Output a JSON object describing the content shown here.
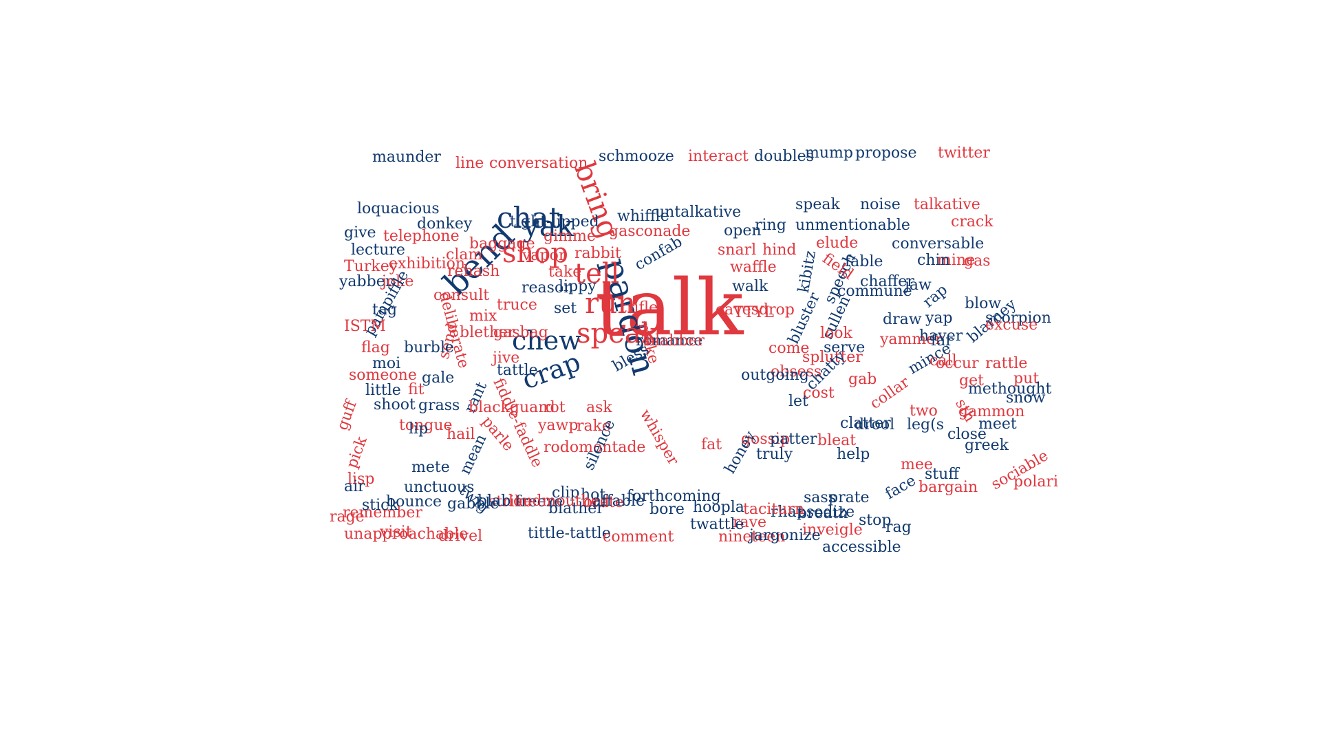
{
  "colors": {
    "navy": "#123a6f",
    "red": "#e0383f",
    "background": "#ffffff"
  },
  "words": [
    {
      "text": "talk",
      "color": "red",
      "size": "xxl"
    },
    {
      "text": "pardon",
      "color": "navy",
      "size": "l"
    },
    {
      "text": "bend",
      "color": "navy",
      "size": "l"
    },
    {
      "text": "chat",
      "color": "navy",
      "size": "l"
    },
    {
      "text": "yak",
      "color": "navy",
      "size": "l"
    },
    {
      "text": "bring",
      "color": "red",
      "size": "l"
    },
    {
      "text": "shop",
      "color": "red",
      "size": "l"
    },
    {
      "text": "tell",
      "color": "red",
      "size": "l"
    },
    {
      "text": "run",
      "color": "red",
      "size": "l"
    },
    {
      "text": "speak",
      "color": "red",
      "size": "l"
    },
    {
      "text": "chew",
      "color": "navy",
      "size": "l"
    },
    {
      "text": "crap",
      "color": "navy",
      "size": "l"
    },
    {
      "text": "maunder",
      "color": "navy",
      "size": "s"
    },
    {
      "text": "line",
      "color": "red",
      "size": "s"
    },
    {
      "text": "conversation",
      "color": "red",
      "size": "s"
    },
    {
      "text": "schmooze",
      "color": "navy",
      "size": "s"
    },
    {
      "text": "interact",
      "color": "red",
      "size": "s"
    },
    {
      "text": "doubles",
      "color": "navy",
      "size": "s"
    },
    {
      "text": "mump",
      "color": "navy",
      "size": "s"
    },
    {
      "text": "propose",
      "color": "navy",
      "size": "s"
    },
    {
      "text": "twitter",
      "color": "red",
      "size": "s"
    },
    {
      "text": "loquacious",
      "color": "navy",
      "size": "s"
    },
    {
      "text": "donkey",
      "color": "navy",
      "size": "s"
    },
    {
      "text": "tight-lipped",
      "color": "navy",
      "size": "s"
    },
    {
      "text": "whiffle",
      "color": "navy",
      "size": "s"
    },
    {
      "text": "untalkative",
      "color": "navy",
      "size": "s"
    },
    {
      "text": "speak",
      "color": "navy",
      "size": "s"
    },
    {
      "text": "noise",
      "color": "navy",
      "size": "s"
    },
    {
      "text": "talkative",
      "color": "red",
      "size": "s"
    },
    {
      "text": "give",
      "color": "navy",
      "size": "s"
    },
    {
      "text": "telephone",
      "color": "red",
      "size": "s"
    },
    {
      "text": "gimme",
      "color": "red",
      "size": "s"
    },
    {
      "text": "gasconade",
      "color": "red",
      "size": "s"
    },
    {
      "text": "open",
      "color": "navy",
      "size": "s"
    },
    {
      "text": "ring",
      "color": "navy",
      "size": "s"
    },
    {
      "text": "unmentionable",
      "color": "navy",
      "size": "s"
    },
    {
      "text": "crack",
      "color": "red",
      "size": "s"
    },
    {
      "text": "lecture",
      "color": "navy",
      "size": "s"
    },
    {
      "text": "clam",
      "color": "red",
      "size": "s"
    },
    {
      "text": "baggage",
      "color": "red",
      "size": "s"
    },
    {
      "text": "vapor",
      "color": "red",
      "size": "s"
    },
    {
      "text": "rabbit",
      "color": "red",
      "size": "s"
    },
    {
      "text": "confab",
      "color": "navy",
      "size": "s"
    },
    {
      "text": "snarl",
      "color": "red",
      "size": "s"
    },
    {
      "text": "hind",
      "color": "red",
      "size": "s"
    },
    {
      "text": "elude",
      "color": "red",
      "size": "s"
    },
    {
      "text": "conversable",
      "color": "navy",
      "size": "s"
    },
    {
      "text": "mine",
      "color": "red",
      "size": "s"
    },
    {
      "text": "Turkey",
      "color": "red",
      "size": "s"
    },
    {
      "text": "exhibition",
      "color": "red",
      "size": "s"
    },
    {
      "text": "rehash",
      "color": "red",
      "size": "s"
    },
    {
      "text": "take",
      "color": "red",
      "size": "s"
    },
    {
      "text": "waffle",
      "color": "red",
      "size": "s"
    },
    {
      "text": "fable",
      "color": "navy",
      "size": "s"
    },
    {
      "text": "chin",
      "color": "navy",
      "size": "s"
    },
    {
      "text": "gas",
      "color": "red",
      "size": "s"
    },
    {
      "text": "yabber",
      "color": "navy",
      "size": "s"
    },
    {
      "text": "joke",
      "color": "red",
      "size": "s"
    },
    {
      "text": "reason",
      "color": "navy",
      "size": "s"
    },
    {
      "text": "lippy",
      "color": "navy",
      "size": "s"
    },
    {
      "text": "walk",
      "color": "navy",
      "size": "s"
    },
    {
      "text": "speech",
      "color": "navy",
      "size": "s"
    },
    {
      "text": "kibitz",
      "color": "navy",
      "size": "s"
    },
    {
      "text": "field",
      "color": "red",
      "size": "s"
    },
    {
      "text": "chaffer",
      "color": "navy",
      "size": "s"
    },
    {
      "text": "jaw",
      "color": "navy",
      "size": "s"
    },
    {
      "text": "painpiffle",
      "color": "navy",
      "size": "s"
    },
    {
      "text": "consult",
      "color": "red",
      "size": "s"
    },
    {
      "text": "truce",
      "color": "red",
      "size": "s"
    },
    {
      "text": "set",
      "color": "navy",
      "size": "s"
    },
    {
      "text": "trifle",
      "color": "red",
      "size": "s"
    },
    {
      "text": "eavesdrop",
      "color": "red",
      "size": "s"
    },
    {
      "text": "commune",
      "color": "navy",
      "size": "s"
    },
    {
      "text": "rap",
      "color": "navy",
      "size": "s"
    },
    {
      "text": "blow",
      "color": "navy",
      "size": "s"
    },
    {
      "text": "tag",
      "color": "navy",
      "size": "s"
    },
    {
      "text": "mix",
      "color": "red",
      "size": "s"
    },
    {
      "text": "TTYL",
      "color": "red",
      "size": "s"
    },
    {
      "text": "bluster",
      "color": "navy",
      "size": "s"
    },
    {
      "text": "sullen",
      "color": "navy",
      "size": "s"
    },
    {
      "text": "draw",
      "color": "navy",
      "size": "s"
    },
    {
      "text": "yap",
      "color": "navy",
      "size": "s"
    },
    {
      "text": "blarney",
      "color": "navy",
      "size": "s"
    },
    {
      "text": "scorpion",
      "color": "navy",
      "size": "s"
    },
    {
      "text": "ISTM",
      "color": "red",
      "size": "s"
    },
    {
      "text": "deliberate",
      "color": "red",
      "size": "s"
    },
    {
      "text": "send",
      "color": "red",
      "size": "s"
    },
    {
      "text": "blether",
      "color": "red",
      "size": "s"
    },
    {
      "text": "gasbag",
      "color": "red",
      "size": "s"
    },
    {
      "text": "look",
      "color": "red",
      "size": "s"
    },
    {
      "text": "yammer",
      "color": "red",
      "size": "s"
    },
    {
      "text": "haver",
      "color": "navy",
      "size": "s"
    },
    {
      "text": "excuse",
      "color": "red",
      "size": "s"
    },
    {
      "text": "flag",
      "color": "red",
      "size": "s"
    },
    {
      "text": "burble",
      "color": "navy",
      "size": "s"
    },
    {
      "text": "romance",
      "color": "navy",
      "size": "s"
    },
    {
      "text": "come",
      "color": "red",
      "size": "s"
    },
    {
      "text": "serve",
      "color": "navy",
      "size": "s"
    },
    {
      "text": "far",
      "color": "navy",
      "size": "s"
    },
    {
      "text": "occur",
      "color": "red",
      "size": "s"
    },
    {
      "text": "moi",
      "color": "navy",
      "size": "s"
    },
    {
      "text": "make",
      "color": "red",
      "size": "s"
    },
    {
      "text": "jive",
      "color": "red",
      "size": "s"
    },
    {
      "text": "blabber",
      "color": "red",
      "size": "s"
    },
    {
      "text": "bless",
      "color": "navy",
      "size": "s"
    },
    {
      "text": "obsess",
      "color": "red",
      "size": "s"
    },
    {
      "text": "splutter",
      "color": "red",
      "size": "s"
    },
    {
      "text": "mince",
      "color": "navy",
      "size": "s"
    },
    {
      "text": "call",
      "color": "red",
      "size": "s"
    },
    {
      "text": "rattle",
      "color": "red",
      "size": "s"
    },
    {
      "text": "someone",
      "color": "red",
      "size": "s"
    },
    {
      "text": "gale",
      "color": "navy",
      "size": "s"
    },
    {
      "text": "tattle",
      "color": "navy",
      "size": "s"
    },
    {
      "text": "outgoing",
      "color": "navy",
      "size": "s"
    },
    {
      "text": "chatty",
      "color": "navy",
      "size": "s"
    },
    {
      "text": "gab",
      "color": "red",
      "size": "s"
    },
    {
      "text": "get",
      "color": "red",
      "size": "s"
    },
    {
      "text": "put",
      "color": "red",
      "size": "s"
    },
    {
      "text": "little",
      "color": "navy",
      "size": "s"
    },
    {
      "text": "fit",
      "color": "red",
      "size": "s"
    },
    {
      "text": "rant",
      "color": "navy",
      "size": "s"
    },
    {
      "text": "cost",
      "color": "red",
      "size": "s"
    },
    {
      "text": "collar",
      "color": "red",
      "size": "s"
    },
    {
      "text": "methought",
      "color": "navy",
      "size": "s"
    },
    {
      "text": "snow",
      "color": "navy",
      "size": "s"
    },
    {
      "text": "shoot",
      "color": "navy",
      "size": "s"
    },
    {
      "text": "grass",
      "color": "navy",
      "size": "s"
    },
    {
      "text": "blackguard",
      "color": "red",
      "size": "s"
    },
    {
      "text": "rot",
      "color": "red",
      "size": "s"
    },
    {
      "text": "ask",
      "color": "red",
      "size": "s"
    },
    {
      "text": "let",
      "color": "navy",
      "size": "s"
    },
    {
      "text": "two",
      "color": "red",
      "size": "s"
    },
    {
      "text": "gammon",
      "color": "red",
      "size": "s"
    },
    {
      "text": "guff",
      "color": "red",
      "size": "s"
    },
    {
      "text": "tongue",
      "color": "red",
      "size": "s"
    },
    {
      "text": "fiddle-faddle",
      "color": "red",
      "size": "s"
    },
    {
      "text": "yawp",
      "color": "red",
      "size": "s"
    },
    {
      "text": "rake",
      "color": "red",
      "size": "s"
    },
    {
      "text": "sth",
      "color": "red",
      "size": "s"
    },
    {
      "text": "clatter",
      "color": "navy",
      "size": "s"
    },
    {
      "text": "drool",
      "color": "navy",
      "size": "s"
    },
    {
      "text": "leg(s",
      "color": "navy",
      "size": "s"
    },
    {
      "text": "meet",
      "color": "navy",
      "size": "s"
    },
    {
      "text": "pick",
      "color": "red",
      "size": "s"
    },
    {
      "text": "lip",
      "color": "navy",
      "size": "s"
    },
    {
      "text": "hail",
      "color": "red",
      "size": "s"
    },
    {
      "text": "parle",
      "color": "red",
      "size": "s"
    },
    {
      "text": "rodomontade",
      "color": "red",
      "size": "s"
    },
    {
      "text": "whisper",
      "color": "red",
      "size": "s"
    },
    {
      "text": "gossip",
      "color": "red",
      "size": "s"
    },
    {
      "text": "patter",
      "color": "navy",
      "size": "s"
    },
    {
      "text": "bleat",
      "color": "red",
      "size": "s"
    },
    {
      "text": "close",
      "color": "navy",
      "size": "s"
    },
    {
      "text": "greek",
      "color": "navy",
      "size": "s"
    },
    {
      "text": "lisp",
      "color": "red",
      "size": "s"
    },
    {
      "text": "mete",
      "color": "navy",
      "size": "s"
    },
    {
      "text": "mean",
      "color": "navy",
      "size": "s"
    },
    {
      "text": "silence",
      "color": "navy",
      "size": "s"
    },
    {
      "text": "fat",
      "color": "red",
      "size": "s"
    },
    {
      "text": "honey",
      "color": "navy",
      "size": "s"
    },
    {
      "text": "truly",
      "color": "navy",
      "size": "s"
    },
    {
      "text": "help",
      "color": "navy",
      "size": "s"
    },
    {
      "text": "mee",
      "color": "red",
      "size": "s"
    },
    {
      "text": "stuff",
      "color": "navy",
      "size": "s"
    },
    {
      "text": "sociable",
      "color": "red",
      "size": "s"
    },
    {
      "text": "air",
      "color": "navy",
      "size": "s"
    },
    {
      "text": "unctuous",
      "color": "navy",
      "size": "s"
    },
    {
      "text": "strike",
      "color": "red",
      "size": "s"
    },
    {
      "text": "freeze",
      "color": "navy",
      "size": "s"
    },
    {
      "text": "hot",
      "color": "navy",
      "size": "s"
    },
    {
      "text": "forthcoming",
      "color": "navy",
      "size": "s"
    },
    {
      "text": "sass",
      "color": "navy",
      "size": "s"
    },
    {
      "text": "prate",
      "color": "navy",
      "size": "s"
    },
    {
      "text": "bargain",
      "color": "red",
      "size": "s"
    },
    {
      "text": "polari",
      "color": "red",
      "size": "s"
    },
    {
      "text": "remember",
      "color": "red",
      "size": "s"
    },
    {
      "text": "bounce",
      "color": "navy",
      "size": "s"
    },
    {
      "text": "gabble",
      "color": "navy",
      "size": "s"
    },
    {
      "text": "blab",
      "color": "navy",
      "size": "s"
    },
    {
      "text": "clip",
      "color": "navy",
      "size": "s"
    },
    {
      "text": "orate",
      "color": "red",
      "size": "s"
    },
    {
      "text": "hoopla",
      "color": "navy",
      "size": "s"
    },
    {
      "text": "rave",
      "color": "red",
      "size": "s"
    },
    {
      "text": "rhapsodize",
      "color": "navy",
      "size": "s"
    },
    {
      "text": "breath",
      "color": "navy",
      "size": "s"
    },
    {
      "text": "face",
      "color": "navy",
      "size": "s"
    },
    {
      "text": "rage",
      "color": "red",
      "size": "s"
    },
    {
      "text": "stick",
      "color": "navy",
      "size": "s"
    },
    {
      "text": "twig",
      "color": "navy",
      "size": "s"
    },
    {
      "text": "loudmouthed",
      "color": "red",
      "size": "s"
    },
    {
      "text": "blather",
      "color": "navy",
      "size": "s"
    },
    {
      "text": "affable",
      "color": "navy",
      "size": "s"
    },
    {
      "text": "bore",
      "color": "navy",
      "size": "s"
    },
    {
      "text": "twattle",
      "color": "navy",
      "size": "s"
    },
    {
      "text": "taciturn",
      "color": "red",
      "size": "s"
    },
    {
      "text": "inveigle",
      "color": "red",
      "size": "s"
    },
    {
      "text": "stop",
      "color": "navy",
      "size": "s"
    },
    {
      "text": "unapproachable",
      "color": "red",
      "size": "s"
    },
    {
      "text": "visit",
      "color": "red",
      "size": "s"
    },
    {
      "text": "drivel",
      "color": "red",
      "size": "s"
    },
    {
      "text": "tittle-tattle",
      "color": "navy",
      "size": "s"
    },
    {
      "text": "comment",
      "color": "red",
      "size": "s"
    },
    {
      "text": "nineteen",
      "color": "red",
      "size": "s"
    },
    {
      "text": "jargonize",
      "color": "navy",
      "size": "s"
    },
    {
      "text": "accessible",
      "color": "navy",
      "size": "s"
    },
    {
      "text": "rag",
      "color": "navy",
      "size": "s"
    }
  ]
}
